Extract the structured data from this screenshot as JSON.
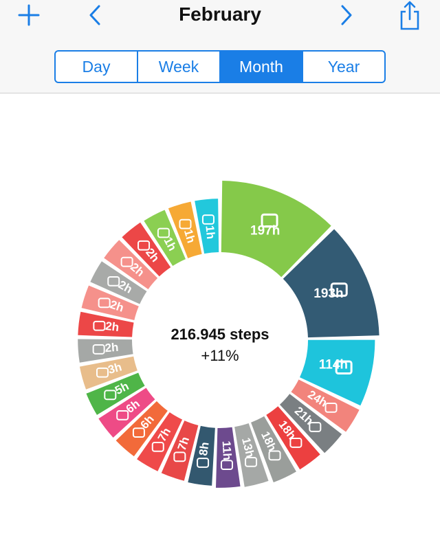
{
  "header": {
    "title": "February",
    "add_icon": "plus-icon",
    "prev_icon": "chevron-left-icon",
    "next_icon": "chevron-right-icon",
    "share_icon": "share-icon",
    "accent_color": "#1a7ee6"
  },
  "range_tabs": [
    {
      "label": "Day",
      "active": false
    },
    {
      "label": "Week",
      "active": false
    },
    {
      "label": "Month",
      "active": true
    },
    {
      "label": "Year",
      "active": false
    }
  ],
  "summary": {
    "steps": "216.945 steps",
    "change": "+11%"
  },
  "chart_data": {
    "type": "pie",
    "unit": "h",
    "segments": [
      {
        "label": "197h",
        "value": 197,
        "icon": "briefcase-icon",
        "color": "#85c94a"
      },
      {
        "label": "193h",
        "value": 193,
        "icon": "moon-icon",
        "color": "#335b74"
      },
      {
        "label": "114h",
        "value": 114,
        "icon": "home-icon",
        "color": "#1ec4dc"
      },
      {
        "label": "24h",
        "value": 24,
        "icon": "school-icon",
        "color": "#f2847c"
      },
      {
        "label": "21h",
        "value": 21,
        "icon": "books-icon",
        "color": "#7a7f82"
      },
      {
        "label": "18h",
        "value": 18,
        "icon": "dancing-icon",
        "color": "#ec4040"
      },
      {
        "label": "18h",
        "value": 18,
        "icon": "wheel-icon",
        "color": "#9a9e9b"
      },
      {
        "label": "13h",
        "value": 13,
        "icon": "plane-icon",
        "color": "#a5a8a6"
      },
      {
        "label": "11h",
        "value": 11,
        "icon": "door-icon",
        "color": "#6d4a8e"
      },
      {
        "label": "8h",
        "value": 8,
        "icon": "plane-icon",
        "color": "#33586f"
      },
      {
        "label": "7h",
        "value": 7,
        "icon": "plane-icon",
        "color": "#e84848"
      },
      {
        "label": "7h",
        "value": 7,
        "icon": "group-icon",
        "color": "#ef4a4a"
      },
      {
        "label": "6h",
        "value": 6,
        "icon": "basketball-icon",
        "color": "#f26a3a"
      },
      {
        "label": "6h",
        "value": 6,
        "icon": "walking-icon",
        "color": "#ee4b86"
      },
      {
        "label": "5h",
        "value": 5,
        "icon": "graduation-icon",
        "color": "#4fb548"
      },
      {
        "label": "3h",
        "value": 3,
        "icon": "plane-icon",
        "color": "#e8bd8b"
      },
      {
        "label": "2h",
        "value": 2,
        "icon": "arrow-luggage-icon",
        "color": "#a5a8a6"
      },
      {
        "label": "2h",
        "value": 2,
        "icon": "dancing-icon",
        "color": "#ec4747"
      },
      {
        "label": "2h",
        "value": 2,
        "icon": "running-icon",
        "color": "#f5918b"
      },
      {
        "label": "2h",
        "value": 2,
        "icon": "luggage-icon",
        "color": "#a8aaa8"
      },
      {
        "label": "2h",
        "value": 2,
        "icon": "shopping-bag-icon",
        "color": "#f5918b"
      },
      {
        "label": "2h",
        "value": 2,
        "icon": "running-icon",
        "color": "#ec4747"
      },
      {
        "label": "1h",
        "value": 1,
        "icon": "train-icon",
        "color": "#8bcf52"
      },
      {
        "label": "1h",
        "value": 1,
        "icon": "basket-icon",
        "color": "#f6a935"
      },
      {
        "label": "1h",
        "value": 1,
        "icon": "scissors-icon",
        "color": "#22c8dc"
      }
    ]
  }
}
